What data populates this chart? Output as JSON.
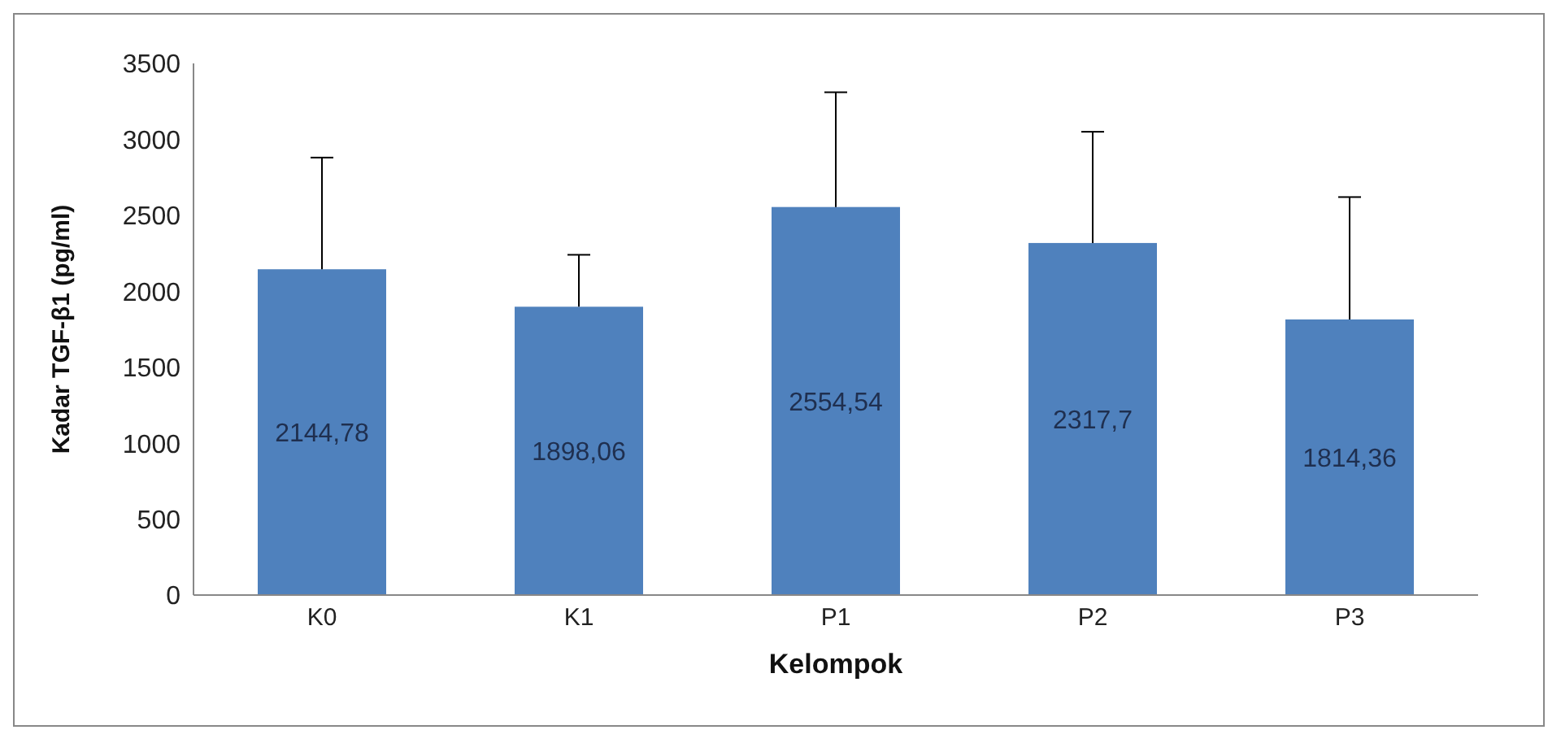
{
  "chart_data": {
    "type": "bar",
    "xlabel": "Kelompok",
    "ylabel": "Kadar TGF-β1 (pg/ml)",
    "categories": [
      "K0",
      "K1",
      "P1",
      "P2",
      "P3"
    ],
    "values": [
      2144.78,
      1898.06,
      2554.54,
      2317.7,
      1814.36
    ],
    "value_labels": [
      "2144,78",
      "1898,06",
      "2554,54",
      "2317,7",
      "1814,36"
    ],
    "errors": [
      [
        2144.78,
        2880
      ],
      [
        1898.06,
        2240
      ],
      [
        2554.54,
        3310
      ],
      [
        2317.7,
        3050
      ],
      [
        1814.36,
        2620
      ]
    ],
    "color": "#4f81bd",
    "ylim": [
      0,
      3500
    ],
    "yticks": [
      0,
      500,
      1000,
      1500,
      2000,
      2500,
      3000,
      3500
    ],
    "grid": false,
    "legend": false
  }
}
